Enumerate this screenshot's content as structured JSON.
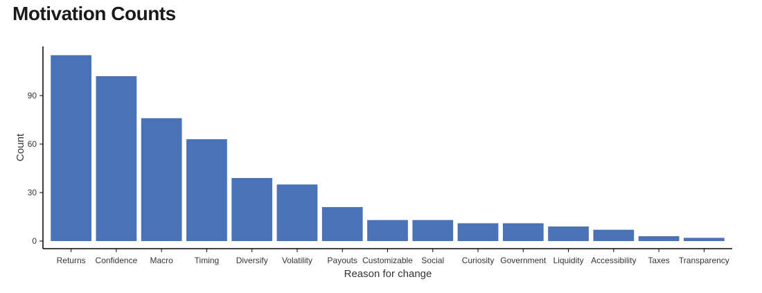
{
  "title": "Motivation Counts",
  "chart_data": {
    "type": "bar",
    "categories": [
      "Returns",
      "Confidence",
      "Macro",
      "Timing",
      "Diversify",
      "Volatility",
      "Payouts",
      "Customizable",
      "Social",
      "Curiosity",
      "Government",
      "Liquidity",
      "Accessibility",
      "Taxes",
      "Transparency"
    ],
    "values": [
      115,
      102,
      76,
      63,
      39,
      35,
      21,
      13,
      13,
      11,
      11,
      9,
      7,
      3,
      2
    ],
    "xlabel": "Reason for change",
    "ylabel": "Count",
    "yticks": [
      0,
      30,
      60,
      90
    ],
    "ylim": [
      0,
      120
    ],
    "bar_color": "#4a72b8",
    "grid": false
  }
}
